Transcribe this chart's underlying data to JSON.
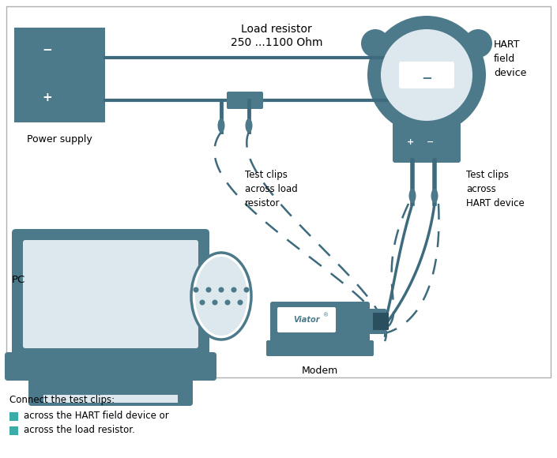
{
  "bg_color": "#ffffff",
  "border_color": "#b0b0b0",
  "main_color": "#4d7a8a",
  "light_color": "#dce8ed",
  "teal_color": "#3aada8",
  "wire_color": "#3d6b7d",
  "title": "",
  "texts": {
    "load_resistor": "Load resistor\n250 ...1100 Ohm",
    "power_supply": "Power supply",
    "hart_device": "HART\nfield\ndevice",
    "test_clips_load": "Test clips\nacross load\nresistor",
    "test_clips_hart": "Test clips\nacross\nHART device",
    "pc": "PC",
    "modem": "Modem",
    "legend_title": "Connect the test clips:",
    "legend_1": "across the HART field device or",
    "legend_2": "across the load resistor."
  },
  "viator_text": "Viator"
}
